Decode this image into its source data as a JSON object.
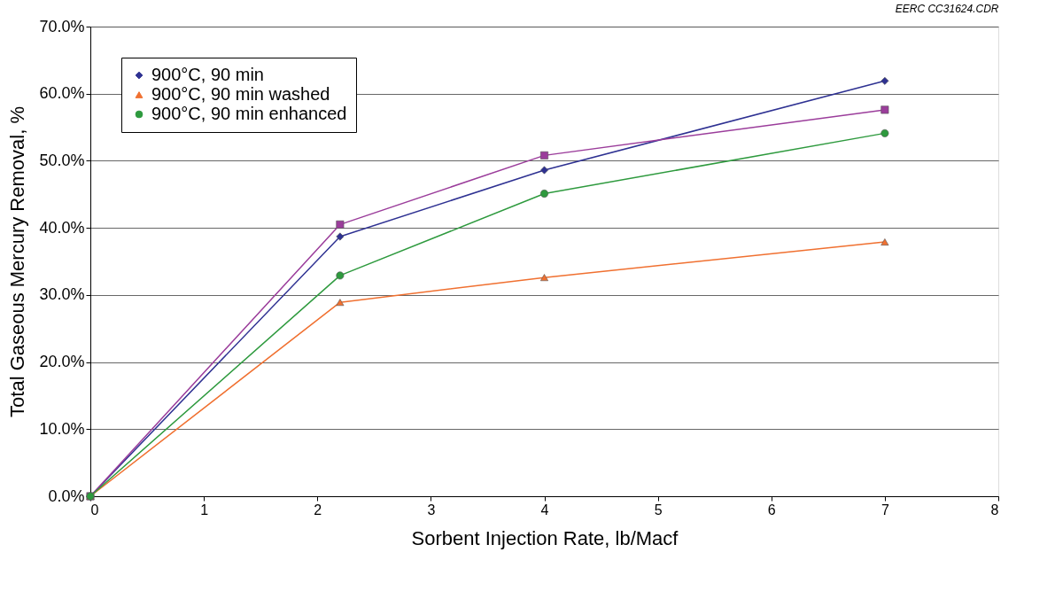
{
  "chart_data": {
    "type": "line",
    "xlabel": "Sorbent Injection Rate, lb/Macf",
    "ylabel": "Total Gaseous Mercury Removal, %",
    "annotations": [
      "EERC CC31624.CDR"
    ],
    "x": [
      0,
      2.2,
      4,
      7
    ],
    "series": [
      {
        "name": "900°C, 90 min",
        "color": "#2e3192",
        "marker": "diamond",
        "values": [
          0,
          38.7,
          48.6,
          61.9
        ]
      },
      {
        "color": "#9b3d9b",
        "marker": "square",
        "values": [
          0,
          40.5,
          50.8,
          57.6
        ]
      },
      {
        "name": "900°C, 90 min washed",
        "color": "#f07030",
        "marker": "triangle",
        "values": [
          0,
          28.9,
          32.6,
          37.9
        ]
      },
      {
        "name": "900°C, 90 min enhanced",
        "color": "#2e9a3e",
        "marker": "circle",
        "values": [
          0,
          32.9,
          45.1,
          54.1
        ]
      }
    ],
    "xlim": [
      0,
      8
    ],
    "xticks": [
      0,
      1,
      2,
      3,
      4,
      5,
      6,
      7,
      8
    ],
    "ylim": [
      0,
      70
    ],
    "yticks": [
      {
        "value": 0,
        "label": "0.0%"
      },
      {
        "value": 10,
        "label": "10.0%"
      },
      {
        "value": 20,
        "label": "20.0%"
      },
      {
        "value": 30,
        "label": "30.0%"
      },
      {
        "value": 40,
        "label": "40.0%"
      },
      {
        "value": 50,
        "label": "50.0%"
      },
      {
        "value": 60,
        "label": "60.0%"
      },
      {
        "value": 70,
        "label": "70.0%"
      }
    ],
    "grid": "y",
    "legend": "top left"
  }
}
